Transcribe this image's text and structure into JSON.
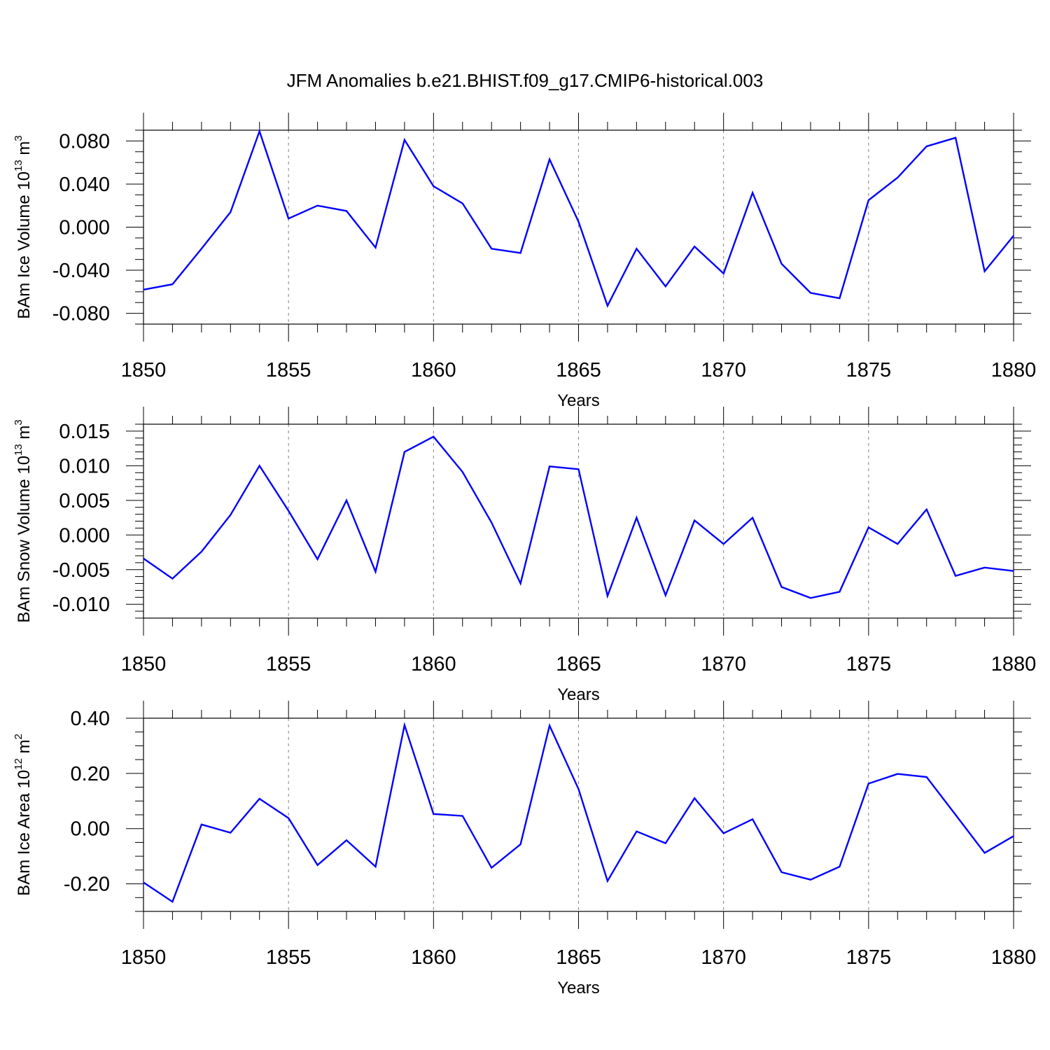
{
  "title": "JFM Anomalies b.e21.BHIST.f09_g17.CMIP6-historical.003",
  "colors": {
    "line": "#0000ff",
    "grid": "#808080",
    "axis": "#000000"
  },
  "chart_data": [
    {
      "type": "line",
      "ylabel": "BAm Ice Volume 10",
      "ylabel_exp": "13",
      "ylabel_unit": " m",
      "ylabel_unit_exp": "3",
      "xlabel": "Years",
      "xlim": [
        1850,
        1880
      ],
      "ylim": [
        -0.09,
        0.09
      ],
      "x_ticks": [
        1850,
        1855,
        1860,
        1865,
        1870,
        1875,
        1880
      ],
      "y_ticks": [
        -0.08,
        -0.04,
        0.0,
        0.04,
        0.08
      ],
      "y_tick_labels": [
        "-0.080",
        "-0.040",
        "0.000",
        "0.040",
        "0.080"
      ],
      "y_minor_step": 0.01,
      "x_grid": [
        1855,
        1860,
        1865,
        1870,
        1875
      ],
      "x": [
        1850,
        1851,
        1852,
        1853,
        1854,
        1855,
        1856,
        1857,
        1858,
        1859,
        1860,
        1861,
        1862,
        1863,
        1864,
        1865,
        1866,
        1867,
        1868,
        1869,
        1870,
        1871,
        1872,
        1873,
        1874,
        1875,
        1876,
        1877,
        1878,
        1879,
        1880
      ],
      "values": [
        -0.058,
        -0.053,
        -0.02,
        0.014,
        0.089,
        0.008,
        0.02,
        0.015,
        -0.019,
        0.081,
        0.038,
        0.022,
        -0.02,
        -0.024,
        0.063,
        0.005,
        -0.073,
        -0.02,
        -0.055,
        -0.018,
        -0.043,
        0.032,
        -0.034,
        -0.061,
        -0.066,
        0.025,
        0.046,
        0.075,
        0.083,
        -0.041,
        -0.008
      ]
    },
    {
      "type": "line",
      "ylabel": "BAm Snow Volume 10",
      "ylabel_exp": "13",
      "ylabel_unit": " m",
      "ylabel_unit_exp": "3",
      "xlabel": "Years",
      "xlim": [
        1850,
        1880
      ],
      "ylim": [
        -0.012,
        0.016
      ],
      "x_ticks": [
        1850,
        1855,
        1860,
        1865,
        1870,
        1875,
        1880
      ],
      "y_ticks": [
        -0.01,
        -0.005,
        0.0,
        0.005,
        0.01,
        0.015
      ],
      "y_tick_labels": [
        "-0.010",
        "-0.005",
        "0.000",
        "0.005",
        "0.010",
        "0.015"
      ],
      "y_minor_step": 0.001,
      "x_grid": [
        1855,
        1860,
        1865,
        1870,
        1875
      ],
      "x": [
        1850,
        1851,
        1852,
        1853,
        1854,
        1855,
        1856,
        1857,
        1858,
        1859,
        1860,
        1861,
        1862,
        1863,
        1864,
        1865,
        1866,
        1867,
        1868,
        1869,
        1870,
        1871,
        1872,
        1873,
        1874,
        1875,
        1876,
        1877,
        1878,
        1879,
        1880
      ],
      "values": [
        -0.0034,
        -0.0063,
        -0.0024,
        0.0029,
        0.01,
        0.0035,
        -0.0035,
        0.005,
        -0.0053,
        0.012,
        0.0142,
        0.0091,
        0.0018,
        -0.007,
        0.0099,
        0.0095,
        -0.0088,
        0.0025,
        -0.0087,
        0.0021,
        -0.0013,
        0.0025,
        -0.0075,
        -0.0091,
        -0.0082,
        0.0011,
        -0.0013,
        0.0037,
        -0.0059,
        -0.0047,
        -0.0052
      ]
    },
    {
      "type": "line",
      "ylabel": "BAm Ice Area 10",
      "ylabel_exp": "12",
      "ylabel_unit": " m",
      "ylabel_unit_exp": "2",
      "xlabel": "Years",
      "xlim": [
        1850,
        1880
      ],
      "ylim": [
        -0.3,
        0.4
      ],
      "x_ticks": [
        1850,
        1855,
        1860,
        1865,
        1870,
        1875,
        1880
      ],
      "y_ticks": [
        -0.2,
        0.0,
        0.2,
        0.4
      ],
      "y_tick_labels": [
        "-0.20",
        "0.00",
        "0.20",
        "0.40"
      ],
      "y_minor_step": 0.05,
      "x_grid": [
        1855,
        1860,
        1865,
        1870,
        1875
      ],
      "x": [
        1850,
        1851,
        1852,
        1853,
        1854,
        1855,
        1856,
        1857,
        1858,
        1859,
        1860,
        1861,
        1862,
        1863,
        1864,
        1865,
        1866,
        1867,
        1868,
        1869,
        1870,
        1871,
        1872,
        1873,
        1874,
        1875,
        1876,
        1877,
        1878,
        1879,
        1880
      ],
      "values": [
        -0.195,
        -0.265,
        0.015,
        -0.015,
        0.108,
        0.038,
        -0.132,
        -0.042,
        -0.138,
        0.375,
        0.053,
        0.046,
        -0.142,
        -0.057,
        0.373,
        0.143,
        -0.19,
        -0.01,
        -0.053,
        0.11,
        -0.017,
        0.034,
        -0.158,
        -0.185,
        -0.138,
        0.163,
        0.198,
        0.187,
        0.05,
        -0.088,
        -0.027
      ]
    }
  ]
}
